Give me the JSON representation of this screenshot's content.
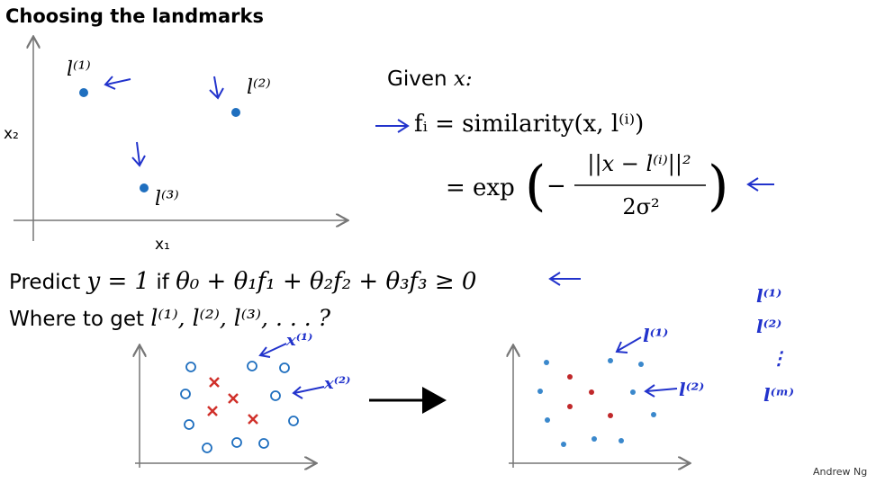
{
  "title": "Choosing the landmarks",
  "plot1": {
    "y_label": "x₂",
    "x_label": "x₁",
    "landmarks": [
      "l⁽¹⁾",
      "l⁽²⁾",
      "l⁽³⁾"
    ]
  },
  "formula": {
    "given": [
      "Given",
      "x:"
    ],
    "line1": "fᵢ = similarity(x, l⁽ⁱ⁾)",
    "line2": [
      "= exp",
      "(",
      "−",
      "||x − l⁽ⁱ⁾||²",
      "2σ²",
      ")"
    ]
  },
  "predict": [
    "Predict",
    "y = 1",
    "if",
    "θ₀ + θ₁f₁ + θ₂f₂ + θ₃f₃ ≥ 0"
  ],
  "where": [
    "Where to get",
    "l⁽¹⁾, l⁽²⁾, l⁽³⁾, . . . ?"
  ],
  "plot2": {
    "annotations": [
      "x⁽¹⁾",
      "x⁽²⁾"
    ]
  },
  "plot3": {
    "annotations": [
      "l⁽¹⁾",
      "l⁽²⁾"
    ]
  },
  "landmark_list": [
    "l⁽¹⁾",
    "l⁽²⁾",
    "⋮",
    "l⁽ᵐ⁾"
  ],
  "footer": "Andrew Ng"
}
